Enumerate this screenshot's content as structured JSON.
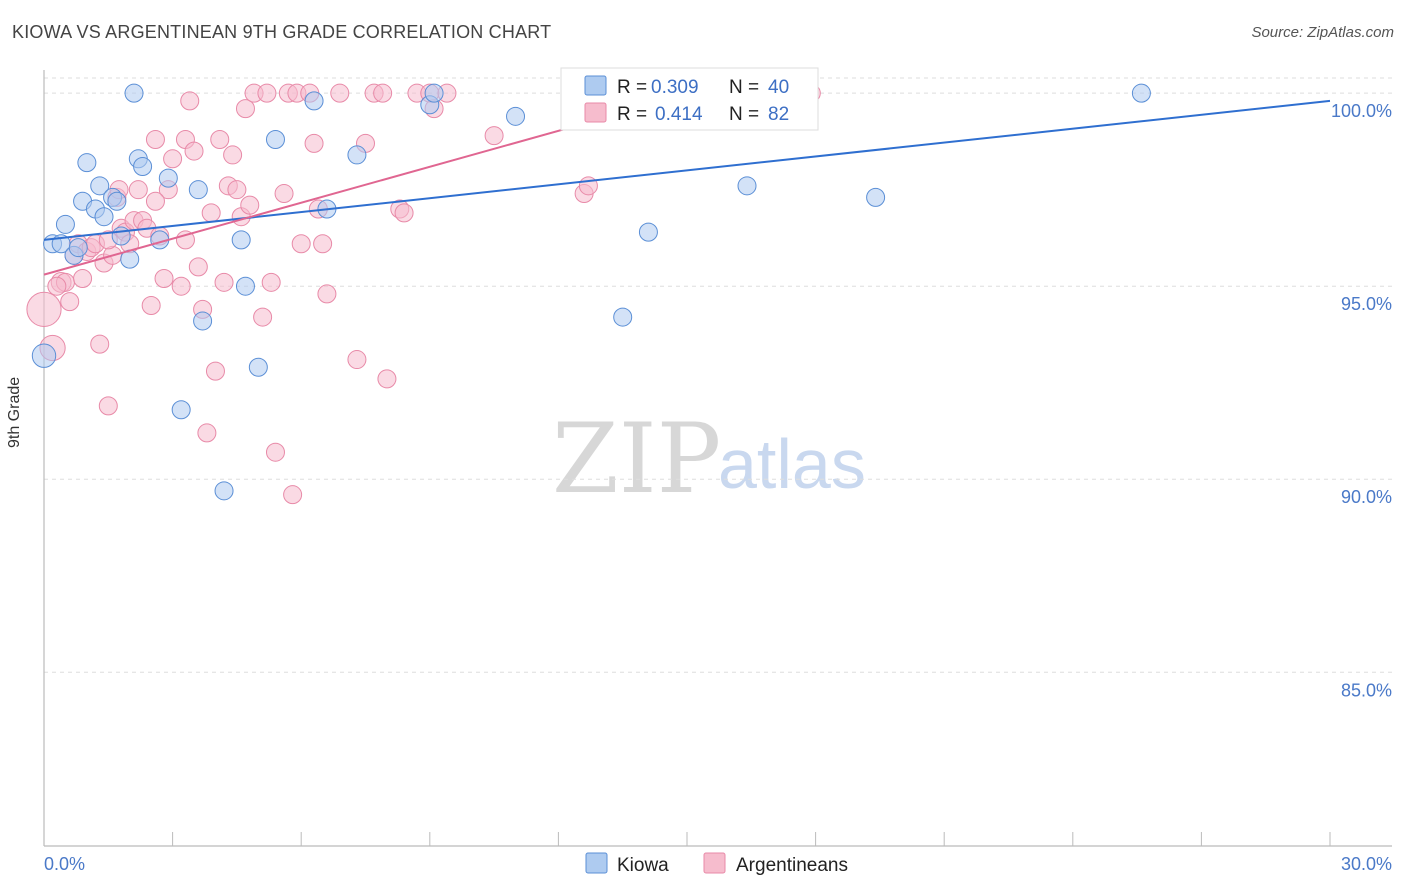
{
  "title": "KIOWA VS ARGENTINEAN 9TH GRADE CORRELATION CHART",
  "source": "Source: ZipAtlas.com",
  "watermark": {
    "zip": "ZIP",
    "atlas": "atlas"
  },
  "colors": {
    "kiowa_fill": "#aecbf0",
    "kiowa_stroke": "#5b8fd6",
    "kiowa_line": "#2f6fd0",
    "arg_fill": "#f6bccd",
    "arg_stroke": "#e88aa8",
    "arg_line": "#e06691",
    "tick_text": "#4a79c8",
    "grid": "#dddddd"
  },
  "legend": {
    "rows": [
      {
        "r_label": "R = ",
        "r_value": "0.309",
        "n_label": "N = ",
        "n_value": "40"
      },
      {
        "r_label": "R = ",
        "r_value": "0.414",
        "n_label": "N = ",
        "n_value": "82"
      }
    ]
  },
  "chart_data": {
    "type": "scatter",
    "title": "KIOWA VS ARGENTINEAN 9TH GRADE CORRELATION CHART",
    "xlabel": "",
    "ylabel": "9th Grade",
    "xlim": [
      0,
      30
    ],
    "ylim": [
      80.5,
      100.6
    ],
    "x_tick_labels": [
      "0.0%",
      "30.0%"
    ],
    "y_ticks": [
      85,
      90,
      95,
      100
    ],
    "y_tick_labels": [
      "85.0%",
      "90.0%",
      "95.0%",
      "100.0%"
    ],
    "grid": true,
    "series": [
      {
        "name": "Kiowa",
        "r": 0.309,
        "n": 40,
        "trend": {
          "x": [
            0,
            30
          ],
          "y": [
            96.2,
            99.8
          ]
        },
        "points": [
          {
            "x": 0.0,
            "y": 93.2,
            "s": 1.3
          },
          {
            "x": 0.2,
            "y": 96.1,
            "s": 1
          },
          {
            "x": 0.4,
            "y": 96.1,
            "s": 1
          },
          {
            "x": 0.5,
            "y": 96.6,
            "s": 1
          },
          {
            "x": 0.7,
            "y": 95.8,
            "s": 1
          },
          {
            "x": 0.8,
            "y": 96.0,
            "s": 1
          },
          {
            "x": 0.9,
            "y": 97.2,
            "s": 1
          },
          {
            "x": 1.0,
            "y": 98.2,
            "s": 1
          },
          {
            "x": 1.2,
            "y": 97.0,
            "s": 1
          },
          {
            "x": 1.3,
            "y": 97.6,
            "s": 1
          },
          {
            "x": 1.4,
            "y": 96.8,
            "s": 1
          },
          {
            "x": 1.6,
            "y": 97.3,
            "s": 1
          },
          {
            "x": 1.7,
            "y": 97.2,
            "s": 1
          },
          {
            "x": 1.8,
            "y": 96.3,
            "s": 1
          },
          {
            "x": 2.0,
            "y": 95.7,
            "s": 1
          },
          {
            "x": 2.1,
            "y": 100.0,
            "s": 1
          },
          {
            "x": 2.2,
            "y": 98.3,
            "s": 1
          },
          {
            "x": 2.3,
            "y": 98.1,
            "s": 1
          },
          {
            "x": 2.7,
            "y": 96.2,
            "s": 1
          },
          {
            "x": 2.9,
            "y": 97.8,
            "s": 1
          },
          {
            "x": 3.2,
            "y": 91.8,
            "s": 1
          },
          {
            "x": 3.6,
            "y": 97.5,
            "s": 1
          },
          {
            "x": 3.7,
            "y": 94.1,
            "s": 1
          },
          {
            "x": 4.2,
            "y": 89.7,
            "s": 1
          },
          {
            "x": 4.6,
            "y": 96.2,
            "s": 1
          },
          {
            "x": 4.7,
            "y": 95.0,
            "s": 1
          },
          {
            "x": 5.0,
            "y": 92.9,
            "s": 1
          },
          {
            "x": 5.4,
            "y": 98.8,
            "s": 1
          },
          {
            "x": 6.3,
            "y": 99.8,
            "s": 1
          },
          {
            "x": 6.6,
            "y": 97.0,
            "s": 1
          },
          {
            "x": 7.3,
            "y": 98.4,
            "s": 1
          },
          {
            "x": 9.0,
            "y": 99.7,
            "s": 1
          },
          {
            "x": 9.1,
            "y": 100.0,
            "s": 1
          },
          {
            "x": 11.0,
            "y": 99.4,
            "s": 1
          },
          {
            "x": 13.5,
            "y": 94.2,
            "s": 1
          },
          {
            "x": 14.1,
            "y": 96.4,
            "s": 1
          },
          {
            "x": 16.0,
            "y": 100.0,
            "s": 1
          },
          {
            "x": 16.4,
            "y": 97.6,
            "s": 1
          },
          {
            "x": 19.4,
            "y": 97.3,
            "s": 1
          },
          {
            "x": 25.6,
            "y": 100.0,
            "s": 1
          }
        ]
      },
      {
        "name": "Argentineans",
        "r": 0.414,
        "n": 82,
        "trend": {
          "x": [
            0,
            14.5
          ],
          "y": [
            95.3,
            99.8
          ]
        },
        "points": [
          {
            "x": 0.0,
            "y": 94.4,
            "s": 1.9
          },
          {
            "x": 0.2,
            "y": 93.4,
            "s": 1.4
          },
          {
            "x": 0.4,
            "y": 95.1,
            "s": 1.1
          },
          {
            "x": 0.5,
            "y": 95.1,
            "s": 1
          },
          {
            "x": 0.6,
            "y": 94.6,
            "s": 1
          },
          {
            "x": 0.7,
            "y": 95.8,
            "s": 1
          },
          {
            "x": 0.8,
            "y": 96.1,
            "s": 1
          },
          {
            "x": 0.9,
            "y": 95.2,
            "s": 1
          },
          {
            "x": 1.0,
            "y": 95.9,
            "s": 1
          },
          {
            "x": 1.1,
            "y": 96.0,
            "s": 1
          },
          {
            "x": 1.2,
            "y": 96.1,
            "s": 1
          },
          {
            "x": 1.3,
            "y": 93.5,
            "s": 1
          },
          {
            "x": 1.4,
            "y": 95.6,
            "s": 1
          },
          {
            "x": 1.5,
            "y": 91.9,
            "s": 1
          },
          {
            "x": 1.6,
            "y": 95.8,
            "s": 1
          },
          {
            "x": 1.7,
            "y": 97.3,
            "s": 1
          },
          {
            "x": 1.75,
            "y": 97.5,
            "s": 1
          },
          {
            "x": 1.8,
            "y": 96.5,
            "s": 1
          },
          {
            "x": 1.9,
            "y": 96.4,
            "s": 1
          },
          {
            "x": 2.0,
            "y": 96.1,
            "s": 1
          },
          {
            "x": 2.1,
            "y": 96.7,
            "s": 1
          },
          {
            "x": 2.2,
            "y": 97.5,
            "s": 1
          },
          {
            "x": 2.3,
            "y": 96.7,
            "s": 1
          },
          {
            "x": 2.4,
            "y": 96.5,
            "s": 1
          },
          {
            "x": 2.5,
            "y": 94.5,
            "s": 1
          },
          {
            "x": 2.6,
            "y": 98.8,
            "s": 1
          },
          {
            "x": 2.7,
            "y": 96.3,
            "s": 1
          },
          {
            "x": 2.8,
            "y": 95.2,
            "s": 1
          },
          {
            "x": 2.9,
            "y": 97.5,
            "s": 1
          },
          {
            "x": 3.0,
            "y": 98.3,
            "s": 1
          },
          {
            "x": 3.2,
            "y": 95.0,
            "s": 1
          },
          {
            "x": 3.3,
            "y": 98.8,
            "s": 1
          },
          {
            "x": 3.4,
            "y": 99.8,
            "s": 1
          },
          {
            "x": 3.5,
            "y": 98.5,
            "s": 1
          },
          {
            "x": 3.6,
            "y": 95.5,
            "s": 1
          },
          {
            "x": 3.7,
            "y": 94.4,
            "s": 1
          },
          {
            "x": 3.8,
            "y": 91.2,
            "s": 1
          },
          {
            "x": 3.9,
            "y": 96.9,
            "s": 1
          },
          {
            "x": 4.0,
            "y": 92.8,
            "s": 1
          },
          {
            "x": 4.1,
            "y": 98.8,
            "s": 1
          },
          {
            "x": 4.2,
            "y": 95.1,
            "s": 1
          },
          {
            "x": 4.3,
            "y": 97.6,
            "s": 1
          },
          {
            "x": 4.4,
            "y": 98.4,
            "s": 1
          },
          {
            "x": 4.5,
            "y": 97.5,
            "s": 1
          },
          {
            "x": 4.6,
            "y": 96.8,
            "s": 1
          },
          {
            "x": 4.7,
            "y": 99.6,
            "s": 1
          },
          {
            "x": 4.8,
            "y": 97.1,
            "s": 1
          },
          {
            "x": 4.9,
            "y": 100.0,
            "s": 1
          },
          {
            "x": 5.1,
            "y": 94.2,
            "s": 1
          },
          {
            "x": 5.2,
            "y": 100.0,
            "s": 1
          },
          {
            "x": 5.3,
            "y": 95.1,
            "s": 1
          },
          {
            "x": 5.4,
            "y": 90.7,
            "s": 1
          },
          {
            "x": 5.6,
            "y": 97.4,
            "s": 1
          },
          {
            "x": 5.7,
            "y": 100.0,
            "s": 1
          },
          {
            "x": 5.8,
            "y": 89.6,
            "s": 1
          },
          {
            "x": 5.9,
            "y": 100.0,
            "s": 1
          },
          {
            "x": 6.0,
            "y": 96.1,
            "s": 1
          },
          {
            "x": 6.2,
            "y": 100.0,
            "s": 1
          },
          {
            "x": 6.3,
            "y": 98.7,
            "s": 1
          },
          {
            "x": 6.4,
            "y": 97.0,
            "s": 1
          },
          {
            "x": 6.5,
            "y": 96.1,
            "s": 1
          },
          {
            "x": 6.6,
            "y": 94.8,
            "s": 1
          },
          {
            "x": 6.9,
            "y": 100.0,
            "s": 1
          },
          {
            "x": 7.3,
            "y": 93.1,
            "s": 1
          },
          {
            "x": 7.5,
            "y": 98.7,
            "s": 1
          },
          {
            "x": 7.7,
            "y": 100.0,
            "s": 1
          },
          {
            "x": 7.9,
            "y": 100.0,
            "s": 1
          },
          {
            "x": 8.0,
            "y": 92.6,
            "s": 1
          },
          {
            "x": 8.3,
            "y": 97.0,
            "s": 1
          },
          {
            "x": 8.4,
            "y": 96.9,
            "s": 1
          },
          {
            "x": 8.7,
            "y": 100.0,
            "s": 1
          },
          {
            "x": 9.0,
            "y": 100.0,
            "s": 1
          },
          {
            "x": 9.1,
            "y": 99.6,
            "s": 1
          },
          {
            "x": 9.4,
            "y": 100.0,
            "s": 1
          },
          {
            "x": 10.5,
            "y": 98.9,
            "s": 1
          },
          {
            "x": 12.6,
            "y": 97.4,
            "s": 1
          },
          {
            "x": 12.7,
            "y": 97.6,
            "s": 1
          },
          {
            "x": 17.9,
            "y": 100.0,
            "s": 1
          },
          {
            "x": 3.3,
            "y": 96.2,
            "s": 1
          },
          {
            "x": 2.6,
            "y": 97.2,
            "s": 1
          },
          {
            "x": 1.5,
            "y": 96.2,
            "s": 1
          },
          {
            "x": 0.3,
            "y": 95.0,
            "s": 1
          }
        ]
      }
    ]
  }
}
